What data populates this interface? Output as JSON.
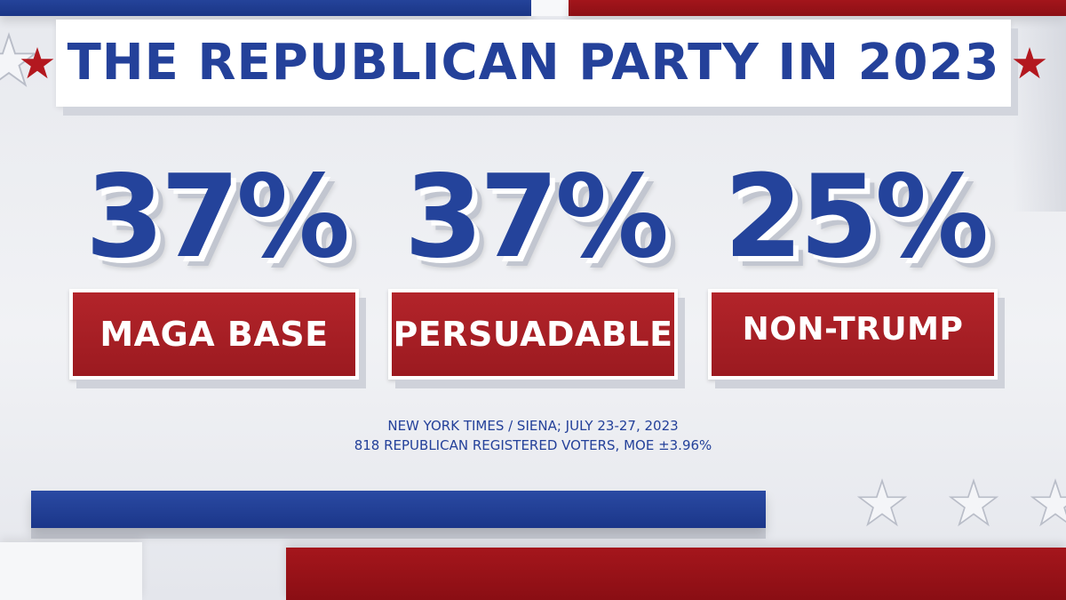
{
  "title": "THE REPUBLICAN PARTY IN 2023",
  "stats": [
    {
      "value": "37%",
      "label": "MAGA BASE"
    },
    {
      "value": "37%",
      "label": "PERSUADABLE"
    },
    {
      "value": "25%",
      "label": "NON-TRUMP"
    }
  ],
  "source": {
    "line1": "NEW YORK TIMES / SIENA; JULY 23-27, 2023",
    "line2": "818 REPUBLICAN REGISTERED VOTERS, MOE ±3.96%"
  },
  "colors": {
    "blue": "#24419a",
    "red": "#a3151b",
    "background": "#eceef2"
  },
  "icons": [
    "star-icon"
  ]
}
